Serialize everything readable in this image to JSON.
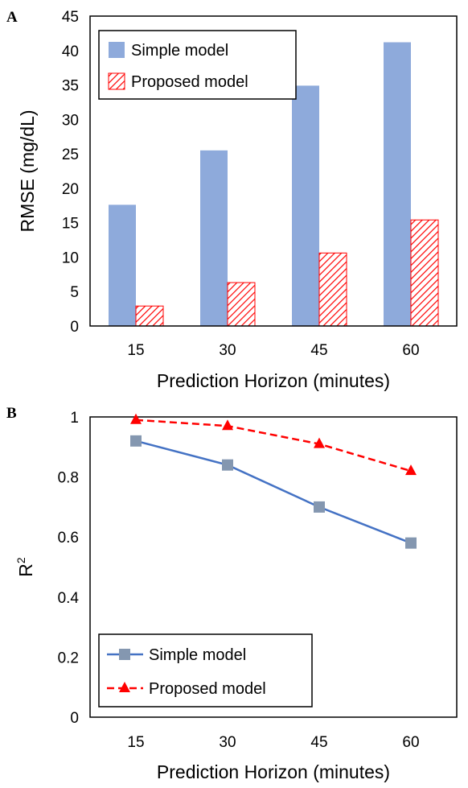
{
  "chart_data": [
    {
      "panel": "A",
      "type": "bar",
      "categories": [
        "15",
        "30",
        "45",
        "60"
      ],
      "series": [
        {
          "name": "Simple model",
          "values": [
            17.6,
            25.5,
            34.9,
            41.2
          ],
          "color": "#8eaadb",
          "pattern": "solid"
        },
        {
          "name": "Proposed model",
          "values": [
            2.9,
            6.3,
            10.6,
            15.4
          ],
          "color": "#ff0000",
          "pattern": "diagonal-hatch"
        }
      ],
      "xlabel": "Prediction Horizon (minutes)",
      "ylabel": "RMSE (mg/dL)",
      "ylim": [
        0,
        45
      ],
      "yticks": [
        "0",
        "5",
        "10",
        "15",
        "20",
        "25",
        "30",
        "35",
        "40",
        "45"
      ],
      "legend": "top-left",
      "grid": false
    },
    {
      "panel": "B",
      "type": "line",
      "categories": [
        "15",
        "30",
        "45",
        "60"
      ],
      "series": [
        {
          "name": "Simple model",
          "values": [
            0.92,
            0.84,
            0.7,
            0.58
          ],
          "color": "#4472c4",
          "marker": "square",
          "marker_color": "#8497b0",
          "dash": "solid"
        },
        {
          "name": "Proposed model",
          "values": [
            0.99,
            0.97,
            0.91,
            0.82
          ],
          "color": "#ff0000",
          "marker": "triangle",
          "marker_color": "#ff0000",
          "dash": "dashed"
        }
      ],
      "xlabel": "Prediction Horizon (minutes)",
      "ylabel": "R",
      "ylabel_superscript": "2",
      "ylim": [
        0,
        1
      ],
      "yticks": [
        "0",
        "0.2",
        "0.4",
        "0.6",
        "0.8",
        "1"
      ],
      "legend": "bottom-left",
      "grid": false
    }
  ]
}
